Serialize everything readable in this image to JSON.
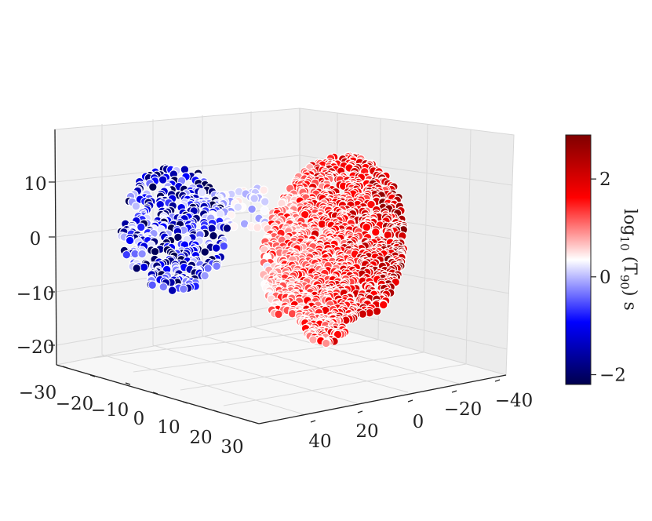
{
  "chart_data": {
    "type": "scatter",
    "projection": "3d",
    "title": "",
    "axes": {
      "x": {
        "ticks": [
          -30,
          -20,
          -10,
          0,
          10,
          20,
          30
        ],
        "tick_labels": [
          "−30",
          "−20",
          "−10",
          "0",
          "10",
          "20",
          "30"
        ],
        "range": [
          -30,
          30
        ]
      },
      "y": {
        "ticks": [
          40,
          20,
          0,
          -20,
          -40
        ],
        "tick_labels": [
          "40",
          "20",
          "0",
          "−20",
          "−40"
        ],
        "range": [
          -45,
          45
        ]
      },
      "z": {
        "ticks": [
          10,
          0,
          -10,
          -20
        ],
        "tick_labels": [
          "10",
          "0",
          "−10",
          "−20"
        ],
        "range": [
          -25,
          18
        ]
      }
    },
    "grid": true,
    "colormap": "seismic",
    "colorbar": {
      "label": "log10 (T90) s",
      "label_main": "log",
      "label_sub1": "10",
      "label_mid": " (T",
      "label_sub2": "90",
      "label_end": ") s",
      "ticks": [
        2,
        0,
        -2
      ],
      "tick_labels": [
        "2",
        "0",
        "−2"
      ],
      "range": [
        -2.2,
        2.9
      ]
    },
    "clusters": [
      {
        "name": "",
        "color_value_range": [
          -2.2,
          0.3
        ],
        "count": 420
      },
      {
        "name": "",
        "color_value_range": [
          -0.3,
          2.9
        ],
        "count": 1400
      }
    ]
  }
}
